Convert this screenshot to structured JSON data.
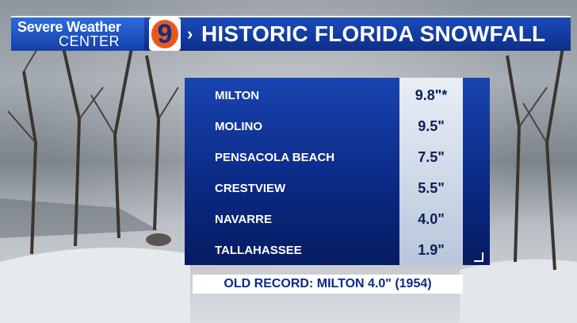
{
  "logo": {
    "line1": "Severe Weather",
    "line2": "CENTER",
    "channel": "9"
  },
  "title": "HISTORIC FLORIDA SNOWFALL",
  "snowfall": [
    {
      "place": "MILTON",
      "amount": "9.8\"*"
    },
    {
      "place": "MOLINO",
      "amount": "9.5\""
    },
    {
      "place": "PENSACOLA BEACH",
      "amount": "7.5\""
    },
    {
      "place": "CRESTVIEW",
      "amount": "5.5\""
    },
    {
      "place": "NAVARRE",
      "amount": "4.0\""
    },
    {
      "place": "TALLAHASSEE",
      "amount": "1.9\""
    }
  ],
  "record": "OLD RECORD: MILTON 4.0\" (1954)",
  "colors": {
    "header_blue": "#0d2f86",
    "accent_orange": "#e8581c"
  }
}
